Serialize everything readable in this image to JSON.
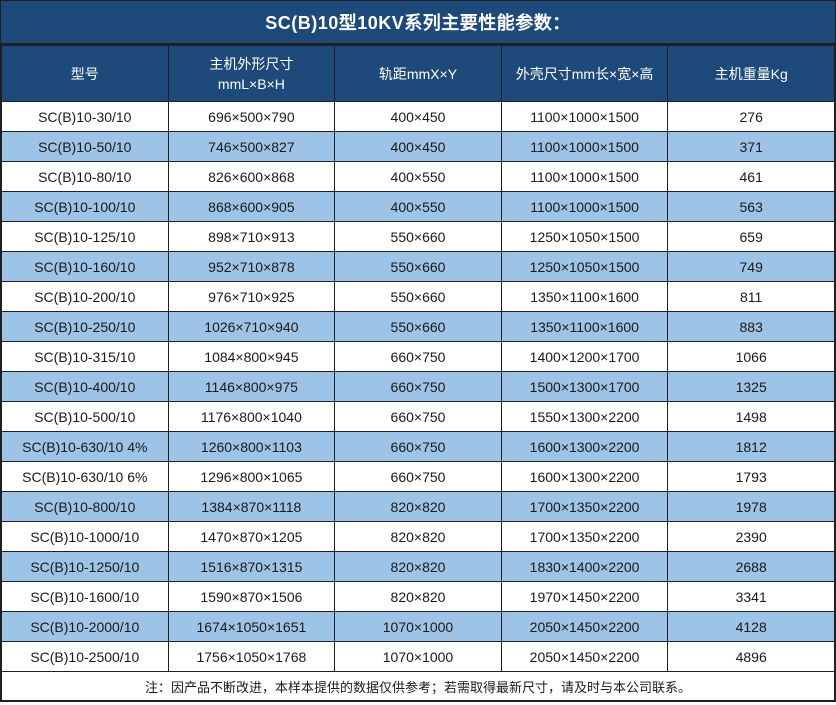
{
  "title": "SC(B)10型10KV系列主要性能参数：",
  "colors": {
    "header_bg": "#1d4a7a",
    "header_text": "#ffffff",
    "row_bg": "#ffffff",
    "row_alt_bg": "#9dc3e6",
    "border": "#1f1f1f",
    "body_text": "#1a1a1a"
  },
  "table": {
    "columns": [
      [
        "型号"
      ],
      [
        "主机外形尺寸",
        "mmL×B×H"
      ],
      [
        "轨距mmX×Y"
      ],
      [
        "外壳尺寸mm长×宽×高"
      ],
      [
        "主机重量Kg"
      ]
    ],
    "rows": [
      [
        "SC(B)10-30/10",
        "696×500×790",
        "400×450",
        "1100×1000×1500",
        "276"
      ],
      [
        "SC(B)10-50/10",
        "746×500×827",
        "400×450",
        "1100×1000×1500",
        "371"
      ],
      [
        "SC(B)10-80/10",
        "826×600×868",
        "400×550",
        "1100×1000×1500",
        "461"
      ],
      [
        "SC(B)10-100/10",
        "868×600×905",
        "400×550",
        "1100×1000×1500",
        "563"
      ],
      [
        "SC(B)10-125/10",
        "898×710×913",
        "550×660",
        "1250×1050×1500",
        "659"
      ],
      [
        "SC(B)10-160/10",
        "952×710×878",
        "550×660",
        "1250×1050×1500",
        "749"
      ],
      [
        "SC(B)10-200/10",
        "976×710×925",
        "550×660",
        "1350×1100×1600",
        "811"
      ],
      [
        "SC(B)10-250/10",
        "1026×710×940",
        "550×660",
        "1350×1100×1600",
        "883"
      ],
      [
        "SC(B)10-315/10",
        "1084×800×945",
        "660×750",
        "1400×1200×1700",
        "1066"
      ],
      [
        "SC(B)10-400/10",
        "1146×800×975",
        "660×750",
        "1500×1300×1700",
        "1325"
      ],
      [
        "SC(B)10-500/10",
        "1176×800×1040",
        "660×750",
        "1550×1300×2200",
        "1498"
      ],
      [
        "SC(B)10-630/10 4%",
        "1260×800×1103",
        "660×750",
        "1600×1300×2200",
        "1812"
      ],
      [
        "SC(B)10-630/10 6%",
        "1296×800×1065",
        "660×750",
        "1600×1300×2200",
        "1793"
      ],
      [
        "SC(B)10-800/10",
        "1384×870×1118",
        "820×820",
        "1700×1350×2200",
        "1978"
      ],
      [
        "SC(B)10-1000/10",
        "1470×870×1205",
        "820×820",
        "1700×1350×2200",
        "2390"
      ],
      [
        "SC(B)10-1250/10",
        "1516×870×1315",
        "820×820",
        "1830×1400×2200",
        "2688"
      ],
      [
        "SC(B)10-1600/10",
        "1590×870×1506",
        "820×820",
        "1970×1450×2200",
        "3341"
      ],
      [
        "SC(B)10-2000/10",
        "1674×1050×1651",
        "1070×1000",
        "2050×1450×2200",
        "4128"
      ],
      [
        "SC(B)10-2500/10",
        "1756×1050×1768",
        "1070×1000",
        "2050×1450×2200",
        "4896"
      ]
    ]
  },
  "footer_note": "注：因产品不断改进，本样本提供的数据仅供参考；若需取得最新尺寸，请及时与本公司联系。"
}
